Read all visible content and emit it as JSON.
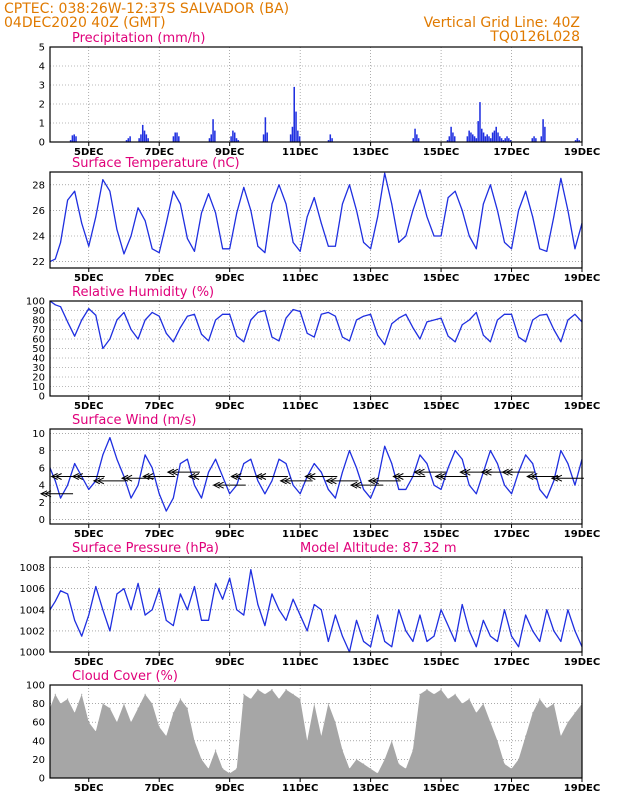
{
  "header": {
    "line1": "CPTEC:   038:26W-12:37S   SALVADOR (BA)",
    "line2": "04DEC2020 40Z (GMT)",
    "vertical_grid": "Vertical Grid Line: 40Z",
    "code": "TQ0126L028"
  },
  "chart_data": [
    {
      "type": "bar",
      "title": "Precipitation (mm/h)",
      "ylim": [
        0,
        5
      ],
      "yticks": [
        0,
        1,
        2,
        3,
        4,
        5
      ],
      "xticks": [
        "5DEC",
        "7DEC",
        "9DEC",
        "11DEC",
        "13DEC",
        "15DEC",
        "17DEC",
        "19DEC"
      ],
      "color": "#1f2fe0",
      "values": [
        0,
        0,
        0,
        0,
        0,
        0,
        0,
        0,
        0,
        0,
        0,
        0.1,
        0.35,
        0.4,
        0.3,
        0,
        0,
        0,
        0,
        0,
        0,
        0,
        0,
        0,
        0,
        0,
        0,
        0,
        0,
        0,
        0,
        0,
        0,
        0,
        0,
        0,
        0,
        0,
        0,
        0,
        0,
        0,
        0.1,
        0.2,
        0.3,
        0,
        0,
        0,
        0,
        0.2,
        0.4,
        0.9,
        0.6,
        0.4,
        0.2,
        0,
        0,
        0,
        0,
        0,
        0,
        0,
        0,
        0,
        0,
        0,
        0,
        0,
        0.3,
        0.5,
        0.5,
        0.3,
        0,
        0,
        0,
        0,
        0,
        0,
        0,
        0,
        0,
        0,
        0,
        0,
        0,
        0,
        0,
        0,
        0.2,
        0.4,
        1.2,
        0.6,
        0,
        0,
        0,
        0,
        0,
        0,
        0,
        0,
        0.3,
        0.6,
        0.5,
        0.2,
        0.1,
        0,
        0,
        0,
        0,
        0,
        0,
        0,
        0,
        0,
        0,
        0,
        0,
        0,
        0.4,
        1.3,
        0.5,
        0,
        0,
        0,
        0,
        0,
        0,
        0,
        0,
        0,
        0,
        0,
        0,
        0.4,
        0.8,
        2.9,
        1.6,
        0.6,
        0.3,
        0,
        0,
        0,
        0,
        0,
        0,
        0,
        0,
        0,
        0,
        0,
        0,
        0,
        0,
        0,
        0.1,
        0.4,
        0.2,
        0,
        0,
        0,
        0,
        0,
        0,
        0,
        0,
        0,
        0,
        0,
        0,
        0,
        0,
        0,
        0,
        0,
        0,
        0,
        0,
        0,
        0,
        0,
        0,
        0,
        0,
        0,
        0,
        0,
        0,
        0,
        0,
        0,
        0,
        0,
        0,
        0,
        0,
        0,
        0,
        0,
        0,
        0,
        0,
        0.2,
        0.7,
        0.4,
        0.2,
        0,
        0,
        0,
        0,
        0,
        0,
        0,
        0,
        0,
        0,
        0,
        0,
        0,
        0,
        0,
        0.1,
        0.3,
        0.8,
        0.5,
        0.3,
        0,
        0,
        0,
        0,
        0,
        0,
        0.3,
        0.6,
        0.5,
        0.4,
        0.3,
        0.2,
        1.1,
        2.1,
        0.7,
        0.5,
        0.3,
        0.4,
        0.3,
        0.2,
        0.5,
        0.6,
        0.8,
        0.5,
        0.3,
        0.2,
        0.1,
        0.2,
        0.3,
        0.2,
        0.1,
        0,
        0,
        0,
        0,
        0,
        0,
        0,
        0,
        0,
        0,
        0,
        0.2,
        0.3,
        0.2,
        0,
        0,
        0.3,
        1.2,
        0.8,
        0,
        0,
        0,
        0,
        0,
        0,
        0,
        0,
        0,
        0,
        0,
        0,
        0,
        0,
        0,
        0,
        0.1,
        0.2,
        0.1,
        0
      ]
    },
    {
      "type": "line",
      "title": "Surface Temperature (nC)",
      "ylim": [
        21.5,
        29
      ],
      "yticks": [
        22,
        24,
        26,
        28
      ],
      "xticks": [
        "5DEC",
        "7DEC",
        "9DEC",
        "11DEC",
        "13DEC",
        "15DEC",
        "17DEC",
        "19DEC"
      ],
      "color": "#1f2fe0",
      "days": [
        3.9,
        4.05,
        4.2,
        4.4,
        4.6,
        4.8,
        5.0,
        5.2,
        5.4,
        5.6,
        5.8,
        6.0,
        6.2,
        6.4,
        6.6,
        6.8,
        7.0,
        7.2,
        7.4,
        7.6,
        7.8,
        8.0,
        8.2,
        8.4,
        8.6,
        8.8,
        9.0,
        9.2,
        9.4,
        9.6,
        9.8,
        10.0,
        10.2,
        10.4,
        10.6,
        10.8,
        11.0,
        11.2,
        11.4,
        11.6,
        11.8,
        12.0,
        12.2,
        12.4,
        12.6,
        12.8,
        13.0,
        13.2,
        13.4,
        13.6,
        13.8,
        14.0,
        14.2,
        14.4,
        14.6,
        14.8,
        15.0,
        15.2,
        15.4,
        15.6,
        15.8,
        16.0,
        16.2,
        16.4,
        16.6,
        16.8,
        17.0,
        17.2,
        17.4,
        17.6,
        17.8,
        18.0,
        18.2,
        18.4,
        18.6,
        18.8,
        19.0
      ],
      "values": [
        22.0,
        22.2,
        23.5,
        26.8,
        27.5,
        25.0,
        23.2,
        25.5,
        28.4,
        27.5,
        24.5,
        22.6,
        24.0,
        26.2,
        25.2,
        23.0,
        22.7,
        25.0,
        27.5,
        26.5,
        23.8,
        22.8,
        25.8,
        27.3,
        25.8,
        23.0,
        23.0,
        25.8,
        27.8,
        26.0,
        23.2,
        22.7,
        26.5,
        28.0,
        26.5,
        23.5,
        22.8,
        25.5,
        27.0,
        25.0,
        23.2,
        23.2,
        26.5,
        28.0,
        26.0,
        23.5,
        23.0,
        25.5,
        28.9,
        26.5,
        23.5,
        24.0,
        26.0,
        27.6,
        25.5,
        24.0,
        24.0,
        27.0,
        27.5,
        26.0,
        24.0,
        23.0,
        26.5,
        28.0,
        26.0,
        23.5,
        23.0,
        26.0,
        27.5,
        25.5,
        23.0,
        22.8,
        25.5,
        28.5,
        26.0,
        23.0,
        25.0
      ]
    },
    {
      "type": "line",
      "title": "Relative Humidity (%)",
      "ylim": [
        0,
        100
      ],
      "yticks": [
        0,
        10,
        20,
        30,
        40,
        50,
        60,
        70,
        80,
        90,
        100
      ],
      "xticks": [
        "5DEC",
        "7DEC",
        "9DEC",
        "11DEC",
        "13DEC",
        "15DEC",
        "17DEC",
        "19DEC"
      ],
      "color": "#1f2fe0",
      "days": [
        3.9,
        4.05,
        4.2,
        4.4,
        4.6,
        4.8,
        5.0,
        5.2,
        5.4,
        5.6,
        5.8,
        6.0,
        6.2,
        6.4,
        6.6,
        6.8,
        7.0,
        7.2,
        7.4,
        7.6,
        7.8,
        8.0,
        8.2,
        8.4,
        8.6,
        8.8,
        9.0,
        9.2,
        9.4,
        9.6,
        9.8,
        10.0,
        10.2,
        10.4,
        10.6,
        10.8,
        11.0,
        11.2,
        11.4,
        11.6,
        11.8,
        12.0,
        12.2,
        12.4,
        12.6,
        12.8,
        13.0,
        13.2,
        13.4,
        13.6,
        13.8,
        14.0,
        14.2,
        14.4,
        14.6,
        14.8,
        15.0,
        15.2,
        15.4,
        15.6,
        15.8,
        16.0,
        16.2,
        16.4,
        16.6,
        16.8,
        17.0,
        17.2,
        17.4,
        17.6,
        17.8,
        18.0,
        18.2,
        18.4,
        18.6,
        18.8,
        19.0
      ],
      "values": [
        100,
        96,
        94,
        78,
        63,
        80,
        92,
        85,
        50,
        60,
        80,
        88,
        70,
        60,
        80,
        88,
        84,
        66,
        57,
        72,
        84,
        86,
        65,
        58,
        80,
        86,
        86,
        63,
        57,
        80,
        88,
        90,
        62,
        58,
        82,
        91,
        89,
        66,
        62,
        86,
        88,
        84,
        62,
        58,
        80,
        84,
        86,
        64,
        54,
        76,
        82,
        86,
        72,
        60,
        78,
        80,
        82,
        63,
        57,
        75,
        80,
        88,
        64,
        57,
        80,
        86,
        86,
        62,
        57,
        80,
        85,
        86,
        70,
        57,
        80,
        86,
        78
      ]
    },
    {
      "type": "line",
      "title": "Surface Wind (m/s)",
      "ylim": [
        -0.5,
        10.5
      ],
      "yticks": [
        0,
        2,
        4,
        6,
        8,
        10
      ],
      "xticks": [
        "5DEC",
        "7DEC",
        "9DEC",
        "11DEC",
        "13DEC",
        "15DEC",
        "17DEC",
        "19DEC"
      ],
      "color": "#1f2fe0",
      "days": [
        3.9,
        4.05,
        4.2,
        4.4,
        4.6,
        4.8,
        5.0,
        5.2,
        5.4,
        5.6,
        5.8,
        6.0,
        6.2,
        6.4,
        6.6,
        6.8,
        7.0,
        7.2,
        7.4,
        7.6,
        7.8,
        8.0,
        8.2,
        8.4,
        8.6,
        8.8,
        9.0,
        9.2,
        9.4,
        9.6,
        9.8,
        10.0,
        10.2,
        10.4,
        10.6,
        10.8,
        11.0,
        11.2,
        11.4,
        11.6,
        11.8,
        12.0,
        12.2,
        12.4,
        12.6,
        12.8,
        13.0,
        13.2,
        13.4,
        13.6,
        13.8,
        14.0,
        14.2,
        14.4,
        14.6,
        14.8,
        15.0,
        15.2,
        15.4,
        15.6,
        15.8,
        16.0,
        16.2,
        16.4,
        16.6,
        16.8,
        17.0,
        17.2,
        17.4,
        17.6,
        17.8,
        18.0,
        18.2,
        18.4,
        18.6,
        18.8,
        19.0
      ],
      "values": [
        6.0,
        4.5,
        2.5,
        4.0,
        6.5,
        5.0,
        3.5,
        4.5,
        7.5,
        9.5,
        7.0,
        5.0,
        2.5,
        4.0,
        7.5,
        6.0,
        3.0,
        1.0,
        2.5,
        6.5,
        7.0,
        4.0,
        2.5,
        5.5,
        7.0,
        5.0,
        3.0,
        4.0,
        6.5,
        7.0,
        4.5,
        3.0,
        4.5,
        7.0,
        6.5,
        4.0,
        3.0,
        5.0,
        6.5,
        5.5,
        3.5,
        2.5,
        5.5,
        8.0,
        6.0,
        3.5,
        2.5,
        4.5,
        8.5,
        6.5,
        3.5,
        3.5,
        5.0,
        7.5,
        6.5,
        4.0,
        3.5,
        6.0,
        8.0,
        7.0,
        4.0,
        3.0,
        5.5,
        8.0,
        6.5,
        4.0,
        3.0,
        5.5,
        7.5,
        6.5,
        3.5,
        2.5,
        4.5,
        8.0,
        6.5,
        4.0,
        7.0
      ],
      "arrows": [
        {
          "day": 4.1,
          "speed": 3.0
        },
        {
          "day": 4.4,
          "speed": 5.0
        },
        {
          "day": 5.0,
          "speed": 5.0
        },
        {
          "day": 5.6,
          "speed": 4.5
        },
        {
          "day": 6.4,
          "speed": 4.8
        },
        {
          "day": 7.0,
          "speed": 5.0
        },
        {
          "day": 7.7,
          "speed": 5.5
        },
        {
          "day": 8.3,
          "speed": 5.0
        },
        {
          "day": 9.0,
          "speed": 4.0
        },
        {
          "day": 9.5,
          "speed": 5.0
        },
        {
          "day": 10.2,
          "speed": 5.0
        },
        {
          "day": 10.9,
          "speed": 4.5
        },
        {
          "day": 11.6,
          "speed": 5.0
        },
        {
          "day": 12.2,
          "speed": 4.5
        },
        {
          "day": 12.9,
          "speed": 4.0
        },
        {
          "day": 13.4,
          "speed": 4.5
        },
        {
          "day": 14.1,
          "speed": 5.0
        },
        {
          "day": 14.7,
          "speed": 5.5
        },
        {
          "day": 15.3,
          "speed": 5.0
        },
        {
          "day": 16.0,
          "speed": 5.5
        },
        {
          "day": 16.6,
          "speed": 5.5
        },
        {
          "day": 17.2,
          "speed": 5.5
        },
        {
          "day": 17.9,
          "speed": 5.0
        },
        {
          "day": 18.6,
          "speed": 4.8
        }
      ]
    },
    {
      "type": "line",
      "title": "Surface Pressure (hPa)",
      "annotation": "Model Altitude: 87.32  m",
      "ylim": [
        1000,
        1009
      ],
      "yticks": [
        1000,
        1002,
        1004,
        1006,
        1008
      ],
      "xticks": [
        "5DEC",
        "7DEC",
        "9DEC",
        "11DEC",
        "13DEC",
        "15DEC",
        "17DEC",
        "19DEC"
      ],
      "color": "#1f2fe0",
      "days": [
        3.9,
        4.05,
        4.2,
        4.4,
        4.6,
        4.8,
        5.0,
        5.2,
        5.4,
        5.6,
        5.8,
        6.0,
        6.2,
        6.4,
        6.6,
        6.8,
        7.0,
        7.2,
        7.4,
        7.6,
        7.8,
        8.0,
        8.2,
        8.4,
        8.6,
        8.8,
        9.0,
        9.2,
        9.4,
        9.6,
        9.8,
        10.0,
        10.2,
        10.4,
        10.6,
        10.8,
        11.0,
        11.2,
        11.4,
        11.6,
        11.8,
        12.0,
        12.2,
        12.4,
        12.6,
        12.8,
        13.0,
        13.2,
        13.4,
        13.6,
        13.8,
        14.0,
        14.2,
        14.4,
        14.6,
        14.8,
        15.0,
        15.2,
        15.4,
        15.6,
        15.8,
        16.0,
        16.2,
        16.4,
        16.6,
        16.8,
        17.0,
        17.2,
        17.4,
        17.6,
        17.8,
        18.0,
        18.2,
        18.4,
        18.6,
        18.8,
        19.0
      ],
      "values": [
        1004.0,
        1004.8,
        1005.8,
        1005.5,
        1003.0,
        1001.5,
        1003.5,
        1006.2,
        1004.0,
        1002.0,
        1005.5,
        1006.0,
        1004.0,
        1006.5,
        1003.5,
        1004.0,
        1006.0,
        1003.0,
        1002.5,
        1005.5,
        1004.0,
        1006.2,
        1003.0,
        1003.0,
        1006.5,
        1005.0,
        1007.0,
        1004.0,
        1003.5,
        1007.8,
        1004.5,
        1002.5,
        1005.5,
        1004.0,
        1003.0,
        1005.0,
        1003.5,
        1002.0,
        1004.5,
        1004.0,
        1001.0,
        1003.5,
        1001.5,
        1000.0,
        1003.0,
        1001.0,
        1000.5,
        1003.5,
        1001.0,
        1000.5,
        1004.0,
        1002.0,
        1001.0,
        1003.5,
        1001.0,
        1001.5,
        1004.0,
        1002.5,
        1001.0,
        1004.5,
        1002.0,
        1000.5,
        1003.0,
        1001.5,
        1001.0,
        1004.0,
        1001.5,
        1000.5,
        1003.5,
        1002.0,
        1001.0,
        1004.0,
        1002.0,
        1001.0,
        1004.0,
        1002.0,
        1000.5
      ]
    },
    {
      "type": "area",
      "title": "Cloud Cover (%)",
      "ylim": [
        0,
        100
      ],
      "yticks": [
        0,
        20,
        40,
        60,
        80,
        100
      ],
      "xticks": [
        "5DEC",
        "7DEC",
        "9DEC",
        "11DEC",
        "13DEC",
        "15DEC",
        "17DEC",
        "19DEC"
      ],
      "color": "#a6a6a6",
      "days": [
        3.9,
        4.05,
        4.2,
        4.4,
        4.6,
        4.8,
        5.0,
        5.2,
        5.4,
        5.6,
        5.8,
        6.0,
        6.2,
        6.4,
        6.6,
        6.8,
        7.0,
        7.2,
        7.4,
        7.6,
        7.8,
        8.0,
        8.2,
        8.4,
        8.6,
        8.8,
        9.0,
        9.2,
        9.4,
        9.6,
        9.8,
        10.0,
        10.2,
        10.4,
        10.6,
        10.8,
        11.0,
        11.2,
        11.4,
        11.6,
        11.8,
        12.0,
        12.2,
        12.4,
        12.6,
        12.8,
        13.0,
        13.2,
        13.4,
        13.6,
        13.8,
        14.0,
        14.2,
        14.4,
        14.6,
        14.8,
        15.0,
        15.2,
        15.4,
        15.6,
        15.8,
        16.0,
        16.2,
        16.4,
        16.6,
        16.8,
        17.0,
        17.2,
        17.4,
        17.6,
        17.8,
        18.0,
        18.2,
        18.4,
        18.6,
        18.8,
        19.0
      ],
      "values": [
        75,
        90,
        80,
        85,
        70,
        90,
        60,
        50,
        80,
        75,
        60,
        80,
        60,
        75,
        90,
        80,
        55,
        45,
        70,
        85,
        75,
        40,
        20,
        10,
        30,
        10,
        5,
        10,
        90,
        85,
        95,
        90,
        95,
        85,
        95,
        90,
        85,
        40,
        80,
        45,
        80,
        60,
        30,
        10,
        20,
        15,
        10,
        5,
        20,
        40,
        15,
        10,
        30,
        90,
        95,
        90,
        95,
        85,
        90,
        80,
        85,
        70,
        80,
        60,
        40,
        15,
        10,
        20,
        45,
        70,
        85,
        75,
        80,
        45,
        60,
        70,
        80
      ]
    }
  ]
}
